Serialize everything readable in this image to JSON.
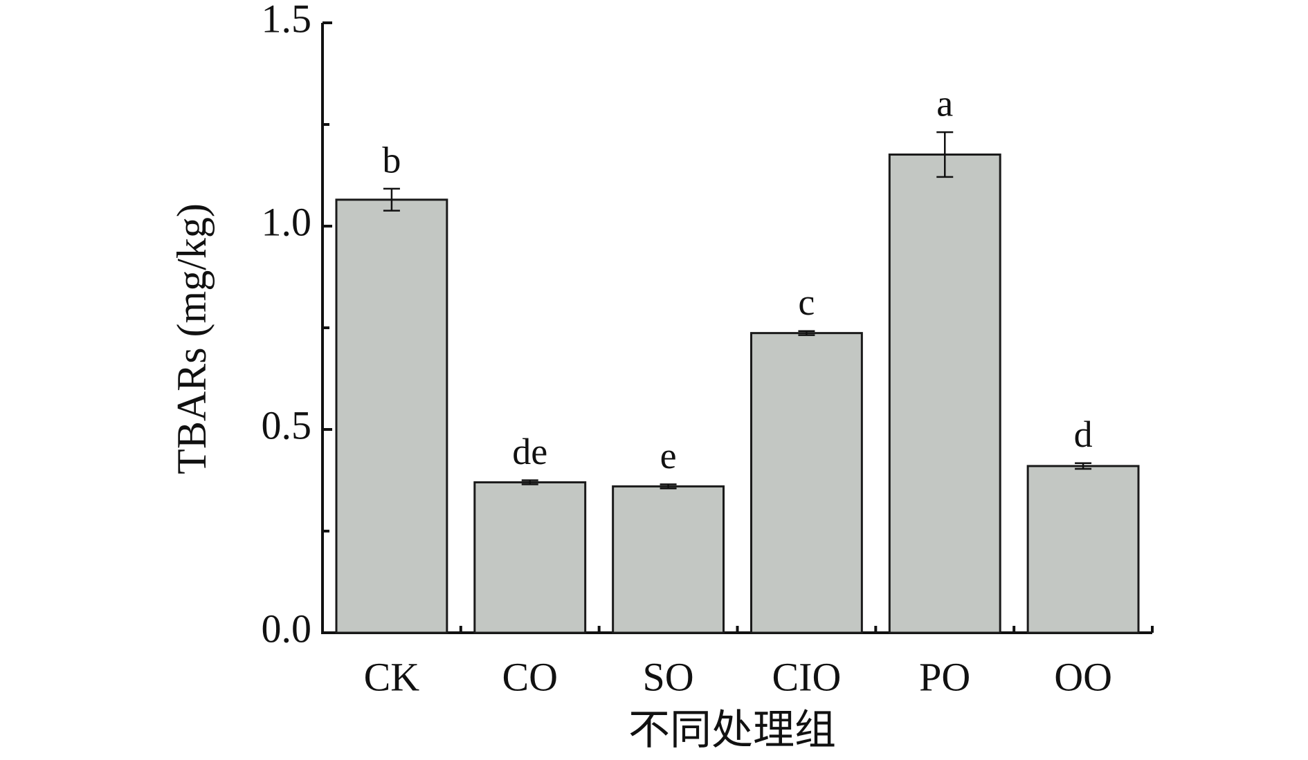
{
  "chart_data": {
    "type": "bar",
    "x_label": "不同处理组",
    "y_label": "TBARs (mg/kg)",
    "categories": [
      "CK",
      "CO",
      "SO",
      "CIO",
      "PO",
      "OO"
    ],
    "values": [
      1.065,
      0.37,
      0.36,
      0.737,
      1.176,
      0.41
    ],
    "errors": [
      0.027,
      0.005,
      0.005,
      0.005,
      0.055,
      0.007
    ],
    "value_labels": [
      "b",
      "de",
      "e",
      "c",
      "a",
      "d"
    ],
    "color": "#c3c7c3",
    "ylim": [
      0,
      1.5
    ],
    "yticks": [
      {
        "value": 0,
        "label": "0.0"
      },
      {
        "value": 0.5,
        "label": "0.5"
      },
      {
        "value": 1,
        "label": "1.0"
      },
      {
        "value": 1.5,
        "label": "1.5"
      }
    ],
    "minor_yticks": [
      0.25,
      0.75,
      1.25
    ],
    "grid": false
  }
}
